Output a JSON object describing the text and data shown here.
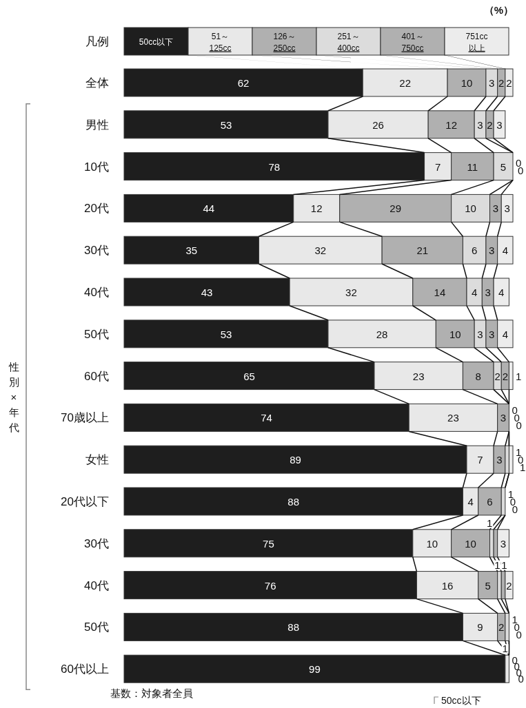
{
  "chart_data": {
    "type": "bar",
    "orientation": "horizontal",
    "stacked": true,
    "legend": "top",
    "legend_title": "凡例",
    "xlim": [
      0,
      101
    ],
    "tick_labels": "y",
    "categories": [
      "全体",
      "男性",
      "10代",
      "20代",
      "30代",
      "40代",
      "50代",
      "60代",
      "70歳以上",
      "女性",
      "20代以下",
      "30代",
      "40代",
      "50代",
      "60代以上"
    ],
    "series": [
      {
        "name": "50cc以下",
        "color": "#1e1e1e",
        "values": [
          62,
          53,
          78,
          44,
          35,
          43,
          53,
          65,
          74,
          89,
          88,
          75,
          76,
          88,
          99
        ],
        "value_labels": [
          "62",
          "53",
          "78",
          "44",
          "35",
          "43",
          "53",
          "65",
          "74",
          "89",
          "88",
          "75",
          "76",
          "88",
          "99"
        ]
      },
      {
        "name": "51～\n125cc",
        "color": "#e8e8e8",
        "values": [
          22,
          26,
          7,
          12,
          32,
          32,
          28,
          23,
          23,
          7,
          4,
          10,
          16,
          9,
          1
        ],
        "value_labels": [
          "22",
          "26",
          "7",
          "12",
          "32",
          "32",
          "28",
          "23",
          "23",
          "7",
          "4",
          "10",
          "16",
          "9",
          "1"
        ]
      },
      {
        "name": "126～\n250cc",
        "color": "#b0b0b0",
        "values": [
          10,
          12,
          11,
          29,
          21,
          14,
          10,
          8,
          3,
          3,
          6,
          10,
          5,
          2,
          0
        ],
        "value_labels": [
          "10",
          "12",
          "11",
          "29",
          "21",
          "14",
          "10",
          "8",
          "3",
          "3",
          "6",
          "10",
          "5",
          "2",
          "0"
        ]
      },
      {
        "name": "251～\n400cc",
        "color": "#dcdcdc",
        "values": [
          3,
          3,
          5,
          10,
          6,
          4,
          3,
          2,
          0,
          1,
          1,
          1,
          1,
          1,
          0
        ],
        "value_labels": [
          "3",
          "3",
          "5",
          "10",
          "6",
          "4",
          "3",
          "2",
          "0",
          "1",
          "1",
          "1",
          "1",
          "1",
          "0"
        ]
      },
      {
        "name": "401～\n750cc",
        "color": "#b0b0b0",
        "values": [
          2,
          2,
          0,
          3,
          3,
          3,
          3,
          2,
          0,
          0,
          0,
          1,
          1,
          0,
          0
        ],
        "value_labels": [
          "2",
          "2",
          "0",
          "3",
          "3",
          "3",
          "3",
          "2",
          "0",
          "0",
          "0",
          null,
          "1",
          "0",
          "0"
        ]
      },
      {
        "name": "751cc\n以上",
        "color": "#ececec",
        "values": [
          2,
          3,
          0,
          3,
          4,
          4,
          4,
          1,
          0,
          1,
          0,
          3,
          2,
          0,
          0
        ],
        "value_labels": [
          "2",
          "3",
          "0",
          "3",
          "4",
          "4",
          "4",
          "1",
          "0",
          "1",
          "0",
          "3",
          "2",
          "0",
          "0"
        ]
      }
    ],
    "annotations": [
      "（%）",
      "性別×年代",
      "基数：対象者全員",
      "50cc以下"
    ]
  }
}
